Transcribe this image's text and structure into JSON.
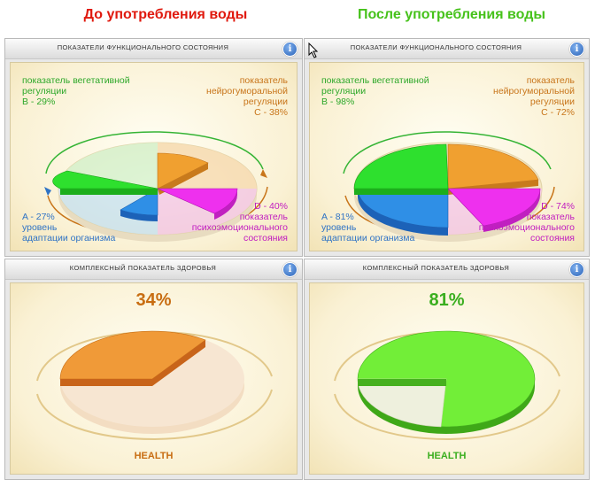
{
  "headings": {
    "before": "До употребления воды",
    "after": "После употребления воды"
  },
  "colors": {
    "before_heading": "#e0190e",
    "after_heading": "#46c21b",
    "sector_a": "#2f8fe6",
    "sector_b": "#2ee02e",
    "sector_c": "#f0a030",
    "sector_d": "#ee30ee",
    "health_before": "#f09a38",
    "health_after": "#72ee38"
  },
  "panels": {
    "functional_title": "ПОКАЗАТЕЛИ ФУНКЦИОНАЛЬНОГО СОСТОЯНИЯ",
    "health_title": "КОМПЛЕКСНЫЙ ПОКАЗАТЕЛЬ ЗДОРОВЬЯ",
    "info_icon": "i"
  },
  "before": {
    "b": {
      "line1": "показатель вегетативной",
      "line2": "регуляции",
      "value": "B - 29%"
    },
    "c": {
      "line1": "показатель",
      "line2": "нейрогуморальной",
      "line3": "регуляции",
      "value": "C - 38%"
    },
    "d": {
      "value": "D - 40%",
      "line1": "показатель",
      "line2": "психоэмоционального",
      "line3": "состояния"
    },
    "a": {
      "value": "A - 27%",
      "line1": "уровень",
      "line2": "адаптации организма"
    },
    "health_percent": "34%",
    "health_label": "HEALTH"
  },
  "after": {
    "b": {
      "line1": "показатель вегетативной",
      "line2": "регуляции",
      "value": "B - 98%"
    },
    "c": {
      "line1": "показатель",
      "line2": "нейрогуморальной",
      "line3": "регуляции",
      "value": "C - 72%"
    },
    "d": {
      "value": "D - 74%",
      "line1": "показатель",
      "line2": "психоэмоционального",
      "line3": "состояния"
    },
    "a": {
      "value": "A - 81%",
      "line1": "уровень",
      "line2": "адаптации организма"
    },
    "health_percent": "81%",
    "health_label": "HEALTH"
  }
}
